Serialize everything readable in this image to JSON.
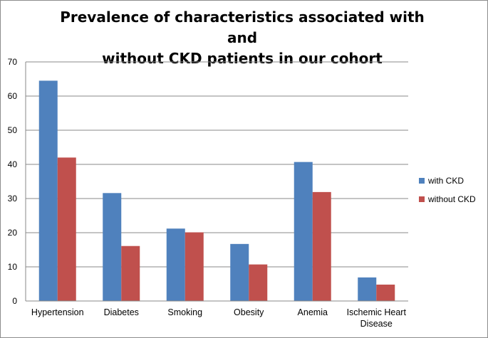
{
  "chart_data": {
    "type": "bar",
    "title_lines": [
      "Prevalence of characteristics associated with and",
      "without CKD patients in our cohort"
    ],
    "categories": [
      [
        "Hypertension"
      ],
      [
        "Diabetes"
      ],
      [
        "Smoking"
      ],
      [
        "Obesity"
      ],
      [
        "Anemia"
      ],
      [
        "Ischemic Heart",
        "Disease"
      ]
    ],
    "series": [
      {
        "name": "with CKD",
        "color": "#4f81bd",
        "values": [
          64.5,
          31.6,
          21.2,
          16.7,
          40.7,
          6.9
        ]
      },
      {
        "name": "without CKD",
        "color": "#c0504d",
        "values": [
          42.0,
          16.1,
          20.1,
          10.7,
          31.9,
          4.8
        ]
      }
    ],
    "ylim": [
      0,
      70
    ],
    "yticks": [
      "0",
      "10",
      "20",
      "30",
      "40",
      "50",
      "60",
      "70"
    ],
    "grid": true,
    "legend_position": "right"
  }
}
